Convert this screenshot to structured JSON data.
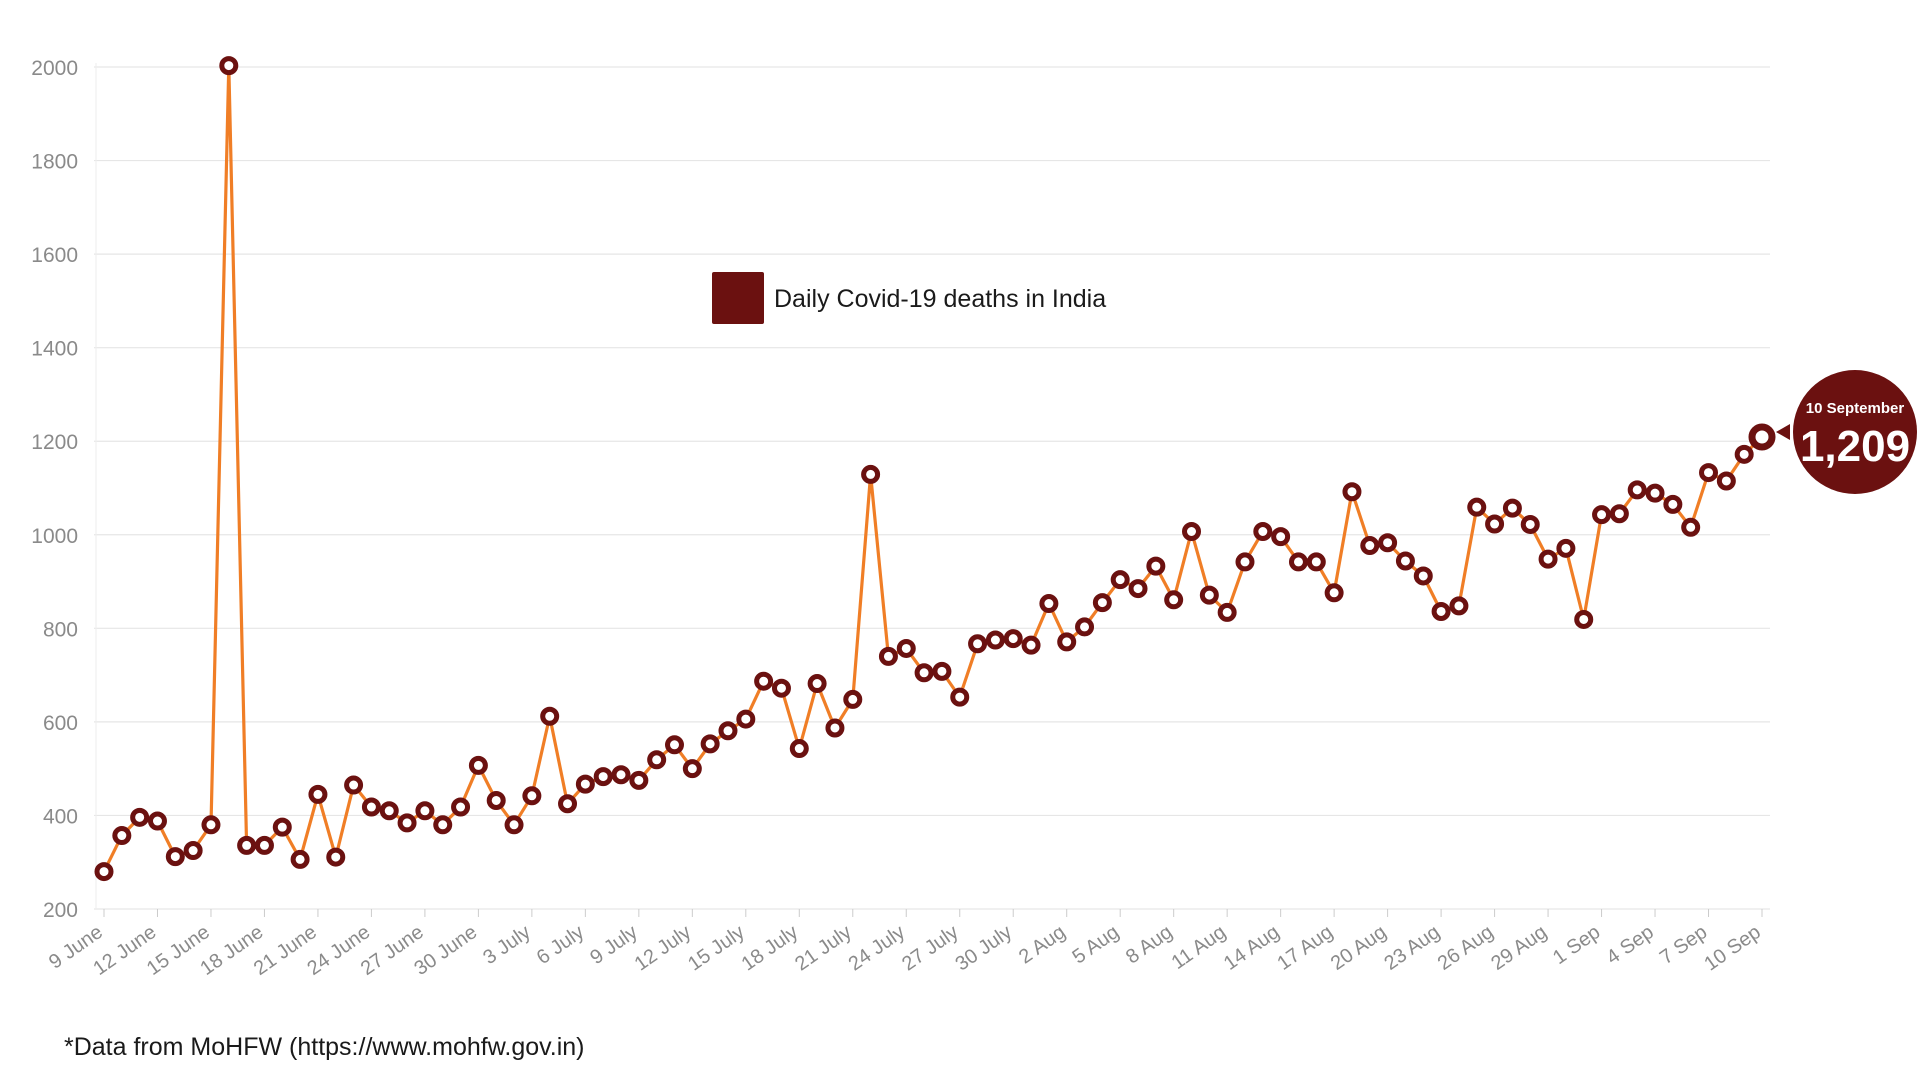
{
  "chart_data": {
    "type": "line",
    "ylim": [
      200,
      2000
    ],
    "y_ticks": [
      200,
      400,
      600,
      800,
      1000,
      1200,
      1400,
      1600,
      1800,
      2000
    ],
    "x_tick_labels": [
      "9 June",
      "12 June",
      "15 June",
      "18 June",
      "21 June",
      "24 June",
      "27 June",
      "30 June",
      "3 July",
      "6 July",
      "9 July",
      "12 July",
      "15 July",
      "18 July",
      "21 July",
      "24 July",
      "27 July",
      "30 July",
      "2 Aug",
      "5 Aug",
      "8 Aug",
      "11 Aug",
      "14 Aug",
      "17 Aug",
      "20 Aug",
      "23 Aug",
      "26 Aug",
      "29 Aug",
      "1 Sep",
      "4 Sep",
      "7 Sep",
      "10 Sep"
    ],
    "grid": true,
    "series": [
      {
        "name": "Daily Covid-19 deaths in India",
        "color": "#F07E26",
        "marker_color": "#6B1110",
        "values": [
          280,
          357,
          396,
          388,
          312,
          325,
          380,
          2003,
          336,
          336,
          375,
          306,
          445,
          311,
          465,
          418,
          410,
          384,
          410,
          380,
          418,
          507,
          432,
          380,
          442,
          612,
          425,
          467,
          483,
          487,
          475,
          519,
          551,
          500,
          553,
          581,
          606,
          687,
          672,
          543,
          682,
          587,
          648,
          1129,
          740,
          757,
          705,
          708,
          653,
          767,
          775,
          778,
          764,
          853,
          771,
          803,
          855,
          904,
          885,
          933,
          861,
          1007,
          871,
          834,
          942,
          1007,
          996,
          942,
          942,
          876,
          1092,
          977,
          983,
          944,
          912,
          836,
          848,
          1059,
          1023,
          1057,
          1022,
          948,
          971,
          819,
          1043,
          1045,
          1096,
          1089,
          1065,
          1016,
          1133,
          1115,
          1172,
          1209
        ]
      }
    ],
    "legend": {
      "position": "upper-middle",
      "label": "Daily Covid-19 deaths in India",
      "swatch_color": "#6B1110"
    },
    "callout": {
      "date_label": "10 September",
      "value_label": "1,209",
      "color": "#6B1110"
    }
  },
  "footnote": "*Data from MoHFW (https://www.mohfw.gov.in)"
}
